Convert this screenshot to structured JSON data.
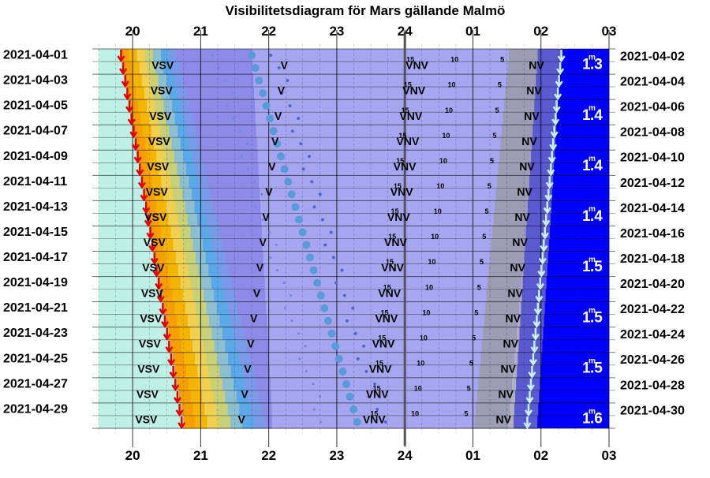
{
  "chart_data": {
    "type": "heatmap",
    "title": "Visibilitetsdiagram för Mars gällande Malmö",
    "x_hour_labels": [
      "20",
      "21",
      "22",
      "23",
      "24",
      "01",
      "02",
      "03"
    ],
    "x_range_hours": [
      19.5,
      27.0
    ],
    "left_dates": [
      "2021-04-01",
      "2021-04-03",
      "2021-04-05",
      "2021-04-07",
      "2021-04-09",
      "2021-04-11",
      "2021-04-13",
      "2021-04-15",
      "2021-04-17",
      "2021-04-19",
      "2021-04-21",
      "2021-04-23",
      "2021-04-25",
      "2021-04-27",
      "2021-04-29"
    ],
    "right_dates": [
      "2021-04-02",
      "2021-04-04",
      "2021-04-06",
      "2021-04-08",
      "2021-04-10",
      "2021-04-12",
      "2021-04-14",
      "2021-04-16",
      "2021-04-18",
      "2021-04-20",
      "2021-04-22",
      "2021-04-24",
      "2021-04-26",
      "2021-04-28",
      "2021-04-30"
    ],
    "night_regions": {
      "sunset_hour": [
        19.83,
        20.75
      ],
      "twilight_end_hour": [
        20.65,
        21.95
      ],
      "night_start_hour": [
        21.75,
        22.05
      ],
      "night_end_hour": [
        25.55,
        25.05
      ],
      "dawn_end_hour": [
        25.95,
        25.6
      ]
    },
    "mars_set_hour": [
      26.3,
      25.8
    ],
    "sun_arrow_hour": [
      19.83,
      20.72
    ],
    "planet_dots_hour": [
      21.75,
      23.3
    ],
    "direction_labels": [
      {
        "text": "VSV",
        "hour": [
          20.45,
          20.2
        ]
      },
      {
        "text": "V",
        "hour": [
          22.25,
          21.6
        ]
      },
      {
        "text": "VNV",
        "hour": [
          24.2,
          23.55
        ]
      },
      {
        "text": "NV",
        "hour": [
          25.95,
          25.45
        ]
      }
    ],
    "altitude_labels": [
      {
        "text": "15",
        "hour": [
          24.1,
          23.55
        ]
      },
      {
        "text": "10",
        "hour": [
          24.75,
          24.15
        ]
      },
      {
        "text": "5",
        "hour": [
          25.45,
          24.9
        ]
      }
    ],
    "magnitudes": [
      {
        "text": "1",
        "sup": "m",
        "suffix": ".3",
        "row": 1
      },
      {
        "text": "1",
        "sup": "m",
        "suffix": ".4",
        "row": 5
      },
      {
        "text": "1",
        "sup": "m",
        "suffix": ".4",
        "row": 9
      },
      {
        "text": "1",
        "sup": "m",
        "suffix": ".4",
        "row": 13
      },
      {
        "text": "1",
        "sup": "m",
        "suffix": ".5",
        "row": 17
      },
      {
        "text": "1",
        "sup": "m",
        "suffix": ".5",
        "row": 21
      },
      {
        "text": "1",
        "sup": "m",
        "suffix": ".5",
        "row": 25
      },
      {
        "text": "1",
        "sup": "m",
        "suffix": ".6",
        "row": 29
      }
    ],
    "colors": {
      "day": "#bff0e6",
      "sunset_orange": "#f5a000",
      "twilight_yellow": "#f0d050",
      "twilight_blue": "#5aa8e8",
      "evening": "#a6a6f0",
      "night": "#9c9cb4",
      "dawn": "#5a5ad0",
      "late_night": "#0000b4",
      "morning": "#0000ff",
      "sun_arrow": "#e00000",
      "mars_arrow": "#c8f0ff",
      "dots": "#5a9ad8"
    }
  }
}
